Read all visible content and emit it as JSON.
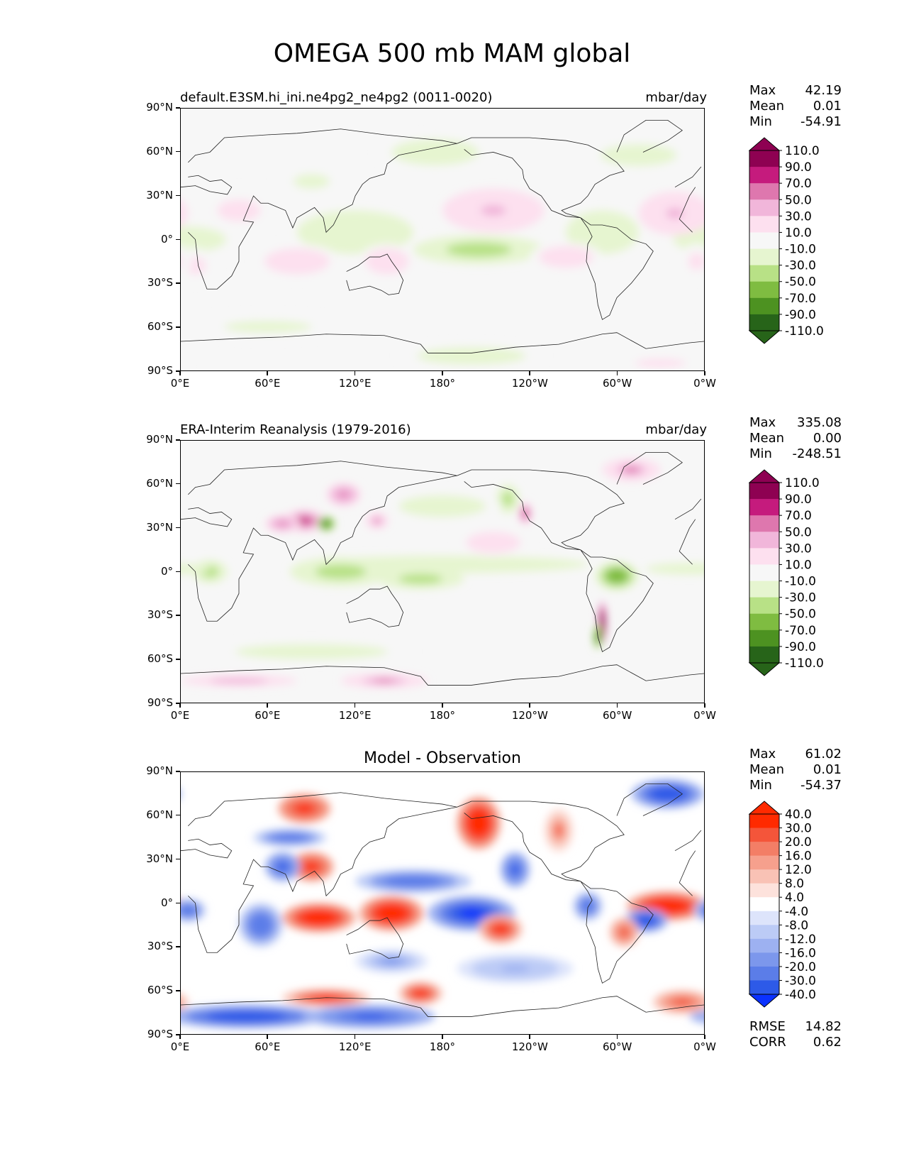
{
  "suptitle": "OMEGA 500 mb MAM global",
  "axes": {
    "lat_ticks": [
      "90°N",
      "60°N",
      "30°N",
      "0°",
      "30°S",
      "60°S",
      "90°S"
    ],
    "lon_ticks": [
      "0°E",
      "60°E",
      "120°E",
      "180°",
      "120°W",
      "60°W",
      "0°W"
    ]
  },
  "panels": [
    {
      "title_left": "default.E3SM.hi_ini.ne4pg2_ne4pg2 (0011-0020)",
      "title_center": "",
      "units": "mbar/day",
      "stats": {
        "max_label": "Max",
        "max": "42.19",
        "mean_label": "Mean",
        "mean": "0.01",
        "min_label": "Min",
        "min": "-54.91"
      },
      "colorbar": {
        "labels": [
          "110.0",
          "90.0",
          "70.0",
          "50.0",
          "30.0",
          "10.0",
          "-10.0",
          "-30.0",
          "-50.0",
          "-70.0",
          "-90.0",
          "-110.0"
        ],
        "colors": [
          "#8e0152",
          "#c51b7d",
          "#de77ae",
          "#f1b6da",
          "#fde0ef",
          "#f7f7f7",
          "#e6f5d0",
          "#b8e186",
          "#7fbc41",
          "#4d9221",
          "#276419"
        ],
        "top_color": "#8e0152",
        "bottom_color": "#276419"
      }
    },
    {
      "title_left": "ERA-Interim Reanalysis (1979-2016)",
      "title_center": "",
      "units": "mbar/day",
      "stats": {
        "max_label": "Max",
        "max": "335.08",
        "mean_label": "Mean",
        "mean": "0.00",
        "min_label": "Min",
        "min": "-248.51"
      },
      "colorbar": {
        "labels": [
          "110.0",
          "90.0",
          "70.0",
          "50.0",
          "30.0",
          "10.0",
          "-10.0",
          "-30.0",
          "-50.0",
          "-70.0",
          "-90.0",
          "-110.0"
        ],
        "colors": [
          "#8e0152",
          "#c51b7d",
          "#de77ae",
          "#f1b6da",
          "#fde0ef",
          "#f7f7f7",
          "#e6f5d0",
          "#b8e186",
          "#7fbc41",
          "#4d9221",
          "#276419"
        ],
        "top_color": "#8e0152",
        "bottom_color": "#276419"
      }
    },
    {
      "title_left": "",
      "title_center": "Model - Observation",
      "units": "",
      "stats": {
        "max_label": "Max",
        "max": "61.02",
        "mean_label": "Mean",
        "mean": "0.01",
        "min_label": "Min",
        "min": "-54.37"
      },
      "colorbar": {
        "labels": [
          "40.0",
          "30.0",
          "20.0",
          "16.0",
          "12.0",
          "8.0",
          "4.0",
          "-4.0",
          "-8.0",
          "-12.0",
          "-16.0",
          "-20.0",
          "-30.0",
          "-40.0"
        ],
        "colors": [
          "#ff2a00",
          "#f4553a",
          "#f37e66",
          "#f6a08d",
          "#f9c2b5",
          "#fde2dc",
          "#ffffff",
          "#dde4fb",
          "#bccbf6",
          "#9db1f1",
          "#7c97ec",
          "#5b7de8",
          "#2d5ae8"
        ],
        "top_color": "#ff2a00",
        "bottom_color": "#0a32ff"
      },
      "metrics": {
        "rmse_label": "RMSE",
        "rmse": "14.82",
        "corr_label": "CORR",
        "corr": "0.62"
      }
    }
  ],
  "chart_data": [
    {
      "type": "heatmap",
      "title": "default.E3SM.hi_ini.ne4pg2_ne4pg2 (0011-0020)",
      "units": "mbar/day",
      "x_ticks": [
        "0°E",
        "60°E",
        "120°E",
        "180°",
        "120°W",
        "60°W",
        "0°W"
      ],
      "y_ticks": [
        "90°N",
        "60°N",
        "30°N",
        "0°",
        "30°S",
        "60°S",
        "90°S"
      ],
      "xlim": [
        0,
        360
      ],
      "ylim": [
        -90,
        90
      ],
      "max": 42.19,
      "mean": 0.01,
      "min": -54.91,
      "levels": [
        -110,
        -90,
        -70,
        -50,
        -30,
        -10,
        10,
        30,
        50,
        70,
        90,
        110
      ],
      "features": [
        {
          "lon": 5,
          "lat": 0,
          "value": -25,
          "rx": 35,
          "ry": 12
        },
        {
          "lon": 120,
          "lat": 5,
          "value": -30,
          "rx": 40,
          "ry": 15
        },
        {
          "lon": 205,
          "lat": -7,
          "value": -45,
          "rx": 45,
          "ry": 10
        },
        {
          "lon": 290,
          "lat": 5,
          "value": -30,
          "rx": 25,
          "ry": 15
        },
        {
          "lon": 175,
          "lat": 60,
          "value": -20,
          "rx": 40,
          "ry": 12
        },
        {
          "lon": 90,
          "lat": 40,
          "value": -15,
          "rx": 25,
          "ry": 10
        },
        {
          "lon": 315,
          "lat": 58,
          "value": -20,
          "rx": 35,
          "ry": 10
        },
        {
          "lon": 60,
          "lat": -60,
          "value": -15,
          "rx": 60,
          "ry": 8
        },
        {
          "lon": 200,
          "lat": -80,
          "value": -20,
          "rx": 50,
          "ry": 8
        },
        {
          "lon": 215,
          "lat": 20,
          "value": 30,
          "rx": 35,
          "ry": 15
        },
        {
          "lon": 340,
          "lat": 18,
          "value": 30,
          "rx": 25,
          "ry": 15
        },
        {
          "lon": 40,
          "lat": 20,
          "value": 15,
          "rx": 30,
          "ry": 15
        },
        {
          "lon": 80,
          "lat": -15,
          "value": 20,
          "rx": 30,
          "ry": 12
        },
        {
          "lon": 142,
          "lat": -15,
          "value": 25,
          "rx": 20,
          "ry": 12
        },
        {
          "lon": 265,
          "lat": -12,
          "value": 25,
          "rx": 25,
          "ry": 10
        },
        {
          "lon": 10,
          "lat": -18,
          "value": 15,
          "rx": 15,
          "ry": 12
        },
        {
          "lon": 355,
          "lat": -15,
          "value": 15,
          "rx": 12,
          "ry": 12
        },
        {
          "lon": 330,
          "lat": -85,
          "value": 15,
          "rx": 35,
          "ry": 6
        }
      ]
    },
    {
      "type": "heatmap",
      "title": "ERA-Interim Reanalysis (1979-2016)",
      "units": "mbar/day",
      "x_ticks": [
        "0°E",
        "60°E",
        "120°E",
        "180°",
        "120°W",
        "60°W",
        "0°W"
      ],
      "y_ticks": [
        "90°N",
        "60°N",
        "30°N",
        "0°",
        "30°S",
        "60°S",
        "90°S"
      ],
      "xlim": [
        0,
        360
      ],
      "ylim": [
        -90,
        90
      ],
      "max": 335.08,
      "mean": 0.0,
      "min": -248.51,
      "levels": [
        -110,
        -90,
        -70,
        -50,
        -30,
        -10,
        10,
        30,
        50,
        70,
        90,
        110
      ],
      "features": [
        {
          "lon": 180,
          "lat": 5,
          "value": -30,
          "rx": 100,
          "ry": 6
        },
        {
          "lon": 110,
          "lat": 0,
          "value": -40,
          "rx": 35,
          "ry": 10
        },
        {
          "lon": 165,
          "lat": -5,
          "value": -50,
          "rx": 30,
          "ry": 7
        },
        {
          "lon": 20,
          "lat": 0,
          "value": -50,
          "rx": 12,
          "ry": 8
        },
        {
          "lon": 300,
          "lat": -3,
          "value": -70,
          "rx": 15,
          "ry": 10
        },
        {
          "lon": 350,
          "lat": 2,
          "value": -30,
          "rx": 30,
          "ry": 4
        },
        {
          "lon": 85,
          "lat": 35,
          "value": 80,
          "rx": 15,
          "ry": 8
        },
        {
          "lon": 100,
          "lat": 33,
          "value": -90,
          "rx": 6,
          "ry": 5
        },
        {
          "lon": 70,
          "lat": 33,
          "value": 60,
          "rx": 12,
          "ry": 6
        },
        {
          "lon": 112,
          "lat": 53,
          "value": 60,
          "rx": 12,
          "ry": 8
        },
        {
          "lon": 135,
          "lat": 35,
          "value": 50,
          "rx": 8,
          "ry": 6
        },
        {
          "lon": 237,
          "lat": 40,
          "value": 70,
          "rx": 5,
          "ry": 8
        },
        {
          "lon": 225,
          "lat": 50,
          "value": -50,
          "rx": 8,
          "ry": 10
        },
        {
          "lon": 290,
          "lat": -35,
          "value": 140,
          "rx": 3,
          "ry": 15
        },
        {
          "lon": 287,
          "lat": -45,
          "value": -90,
          "rx": 3,
          "ry": 8
        },
        {
          "lon": 310,
          "lat": 70,
          "value": 50,
          "rx": 20,
          "ry": 8
        },
        {
          "lon": 215,
          "lat": 20,
          "value": 25,
          "rx": 25,
          "ry": 10
        },
        {
          "lon": 140,
          "lat": -75,
          "value": 50,
          "rx": 30,
          "ry": 5
        },
        {
          "lon": 40,
          "lat": -75,
          "value": 40,
          "rx": 40,
          "ry": 4
        },
        {
          "lon": 90,
          "lat": -55,
          "value": -25,
          "rx": 70,
          "ry": 7
        },
        {
          "lon": 180,
          "lat": 45,
          "value": -20,
          "rx": 40,
          "ry": 10
        }
      ]
    },
    {
      "type": "heatmap",
      "title": "Model - Observation",
      "x_ticks": [
        "0°E",
        "60°E",
        "120°E",
        "180°",
        "120°W",
        "60°W",
        "0°W"
      ],
      "y_ticks": [
        "90°N",
        "60°N",
        "30°N",
        "0°",
        "30°S",
        "60°S",
        "90°S"
      ],
      "xlim": [
        0,
        360
      ],
      "ylim": [
        -90,
        90
      ],
      "max": 61.02,
      "mean": 0.01,
      "min": -54.37,
      "rmse": 14.82,
      "corr": 0.62,
      "levels": [
        -40,
        -30,
        -20,
        -16,
        -12,
        -8,
        -4,
        4,
        8,
        12,
        16,
        20,
        30,
        40
      ],
      "features": [
        {
          "lon": 200,
          "lat": -7,
          "value": -45,
          "rx": 30,
          "ry": 12
        },
        {
          "lon": 145,
          "lat": -7,
          "value": 45,
          "rx": 22,
          "ry": 12
        },
        {
          "lon": 95,
          "lat": -10,
          "value": 40,
          "rx": 25,
          "ry": 10
        },
        {
          "lon": 335,
          "lat": -2,
          "value": 45,
          "rx": 28,
          "ry": 10
        },
        {
          "lon": 320,
          "lat": -12,
          "value": -40,
          "rx": 15,
          "ry": 8
        },
        {
          "lon": 280,
          "lat": -2,
          "value": -30,
          "rx": 10,
          "ry": 10
        },
        {
          "lon": 230,
          "lat": 23,
          "value": -35,
          "rx": 10,
          "ry": 12
        },
        {
          "lon": 205,
          "lat": 55,
          "value": 40,
          "rx": 15,
          "ry": 18
        },
        {
          "lon": 85,
          "lat": 65,
          "value": 35,
          "rx": 18,
          "ry": 10
        },
        {
          "lon": 90,
          "lat": 25,
          "value": 35,
          "rx": 15,
          "ry": 10
        },
        {
          "lon": 160,
          "lat": 15,
          "value": -30,
          "rx": 40,
          "ry": 8
        },
        {
          "lon": 70,
          "lat": 25,
          "value": -35,
          "rx": 12,
          "ry": 10
        },
        {
          "lon": 75,
          "lat": 45,
          "value": -30,
          "rx": 25,
          "ry": 6
        },
        {
          "lon": 55,
          "lat": -15,
          "value": -30,
          "rx": 15,
          "ry": 15
        },
        {
          "lon": 5,
          "lat": -5,
          "value": -30,
          "rx": 12,
          "ry": 8
        },
        {
          "lon": 335,
          "lat": 75,
          "value": -40,
          "rx": 25,
          "ry": 10
        },
        {
          "lon": 45,
          "lat": -78,
          "value": -40,
          "rx": 55,
          "ry": 8
        },
        {
          "lon": 130,
          "lat": -78,
          "value": -35,
          "rx": 45,
          "ry": 8
        },
        {
          "lon": 100,
          "lat": -65,
          "value": 30,
          "rx": 30,
          "ry": 6
        },
        {
          "lon": 165,
          "lat": -62,
          "value": 30,
          "rx": 15,
          "ry": 8
        },
        {
          "lon": 220,
          "lat": -18,
          "value": 30,
          "rx": 15,
          "ry": 10
        },
        {
          "lon": 305,
          "lat": -20,
          "value": 25,
          "rx": 10,
          "ry": 10
        },
        {
          "lon": 345,
          "lat": -68,
          "value": 25,
          "rx": 20,
          "ry": 8
        },
        {
          "lon": 230,
          "lat": -45,
          "value": -15,
          "rx": 40,
          "ry": 10
        },
        {
          "lon": 145,
          "lat": -40,
          "value": -20,
          "rx": 25,
          "ry": 8
        },
        {
          "lon": 260,
          "lat": 50,
          "value": 20,
          "rx": 10,
          "ry": 15
        }
      ]
    }
  ]
}
